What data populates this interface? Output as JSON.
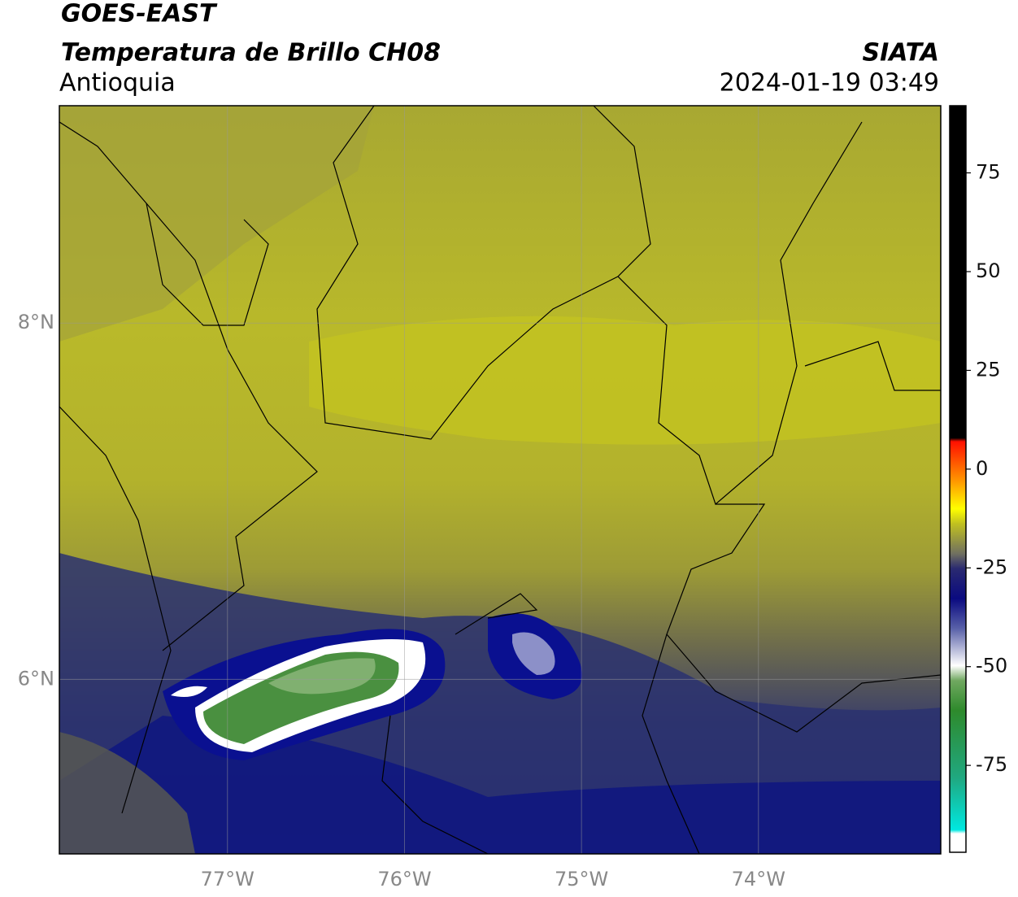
{
  "header": {
    "title": "GOES-EAST",
    "subtitle": "Temperatura de Brillo CH08",
    "region": "Antioquia",
    "source": "SIATA",
    "datetime": "2024-01-19 03:49"
  },
  "map": {
    "xlim": [
      -77.95,
      -72.97
    ],
    "ylim": [
      5.02,
      9.22
    ],
    "xticks": [
      {
        "value": -77,
        "label": "77°W"
      },
      {
        "value": -76,
        "label": "76°W"
      },
      {
        "value": -75,
        "label": "75°W"
      },
      {
        "value": -74,
        "label": "74°W"
      }
    ],
    "yticks": [
      {
        "value": 6,
        "label": "6°N"
      },
      {
        "value": 8,
        "label": "8°N"
      }
    ],
    "grid": true
  },
  "colorbar": {
    "lim": [
      -97,
      92
    ],
    "ticks": [
      -75,
      -50,
      -25,
      0,
      25,
      50,
      75
    ]
  }
}
